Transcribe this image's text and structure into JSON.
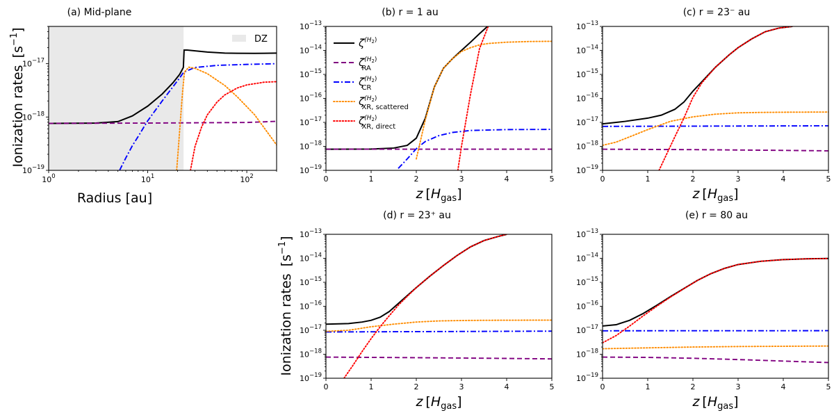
{
  "figure": {
    "ylabel_text": "Ionization rates",
    "ylabel_unit": "[s",
    "ylabel_unit_exp": "−1",
    "ylabel_unit_close": "]",
    "z_label_var": "z",
    "z_label_open": "[",
    "z_label_H": "H",
    "z_label_sub": "gas",
    "z_label_close": "]"
  },
  "colors": {
    "total": "#000000",
    "ra": "#800080",
    "cr": "#0000ff",
    "xr_scattered": "#ff8c00",
    "xr_direct": "#ff0000",
    "dz_fill": "#e9e9e9"
  },
  "legend": {
    "zeta": "ζ",
    "h2_sup": "(H",
    "h2_sub": "2",
    "h2_close": ")",
    "ra_sub": "RA",
    "cr_sub": "CR",
    "xr_scattered_sub": "XR, scattered",
    "xr_direct_sub": "XR, direct",
    "dz_label": "DZ"
  },
  "chart_data": [
    {
      "id": "a",
      "type": "line",
      "title": "(a) Mid-plane",
      "xlabel": "Radius [au]",
      "ylabel": "Ionization rates [s^-1]",
      "xscale": "log",
      "yscale": "log",
      "xlim": [
        1,
        200
      ],
      "ylim": [
        1e-19,
        5e-17
      ],
      "xticks": [
        1,
        10,
        100
      ],
      "xtick_labels": [
        "10^0",
        "10^1",
        "10^2"
      ],
      "yticks": [
        1e-19,
        1e-18,
        1e-17
      ],
      "ytick_labels": [
        "10^-19",
        "10^-18",
        "10^-17"
      ],
      "shaded_region": {
        "label": "DZ",
        "x": [
          1,
          23
        ]
      },
      "series": [
        {
          "name": "total",
          "style": "solid",
          "x": [
            1,
            3,
            5,
            7,
            10,
            14,
            18,
            21,
            22.9,
            23.3,
            25,
            40,
            60,
            80,
            120,
            200
          ],
          "y": [
            7.6e-19,
            7.7e-19,
            8.2e-19,
            1.05e-18,
            1.6e-18,
            2.7e-18,
            4.4e-18,
            6.3e-18,
            8.5e-18,
            1.8e-17,
            1.8e-17,
            1.65e-17,
            1.58e-17,
            1.57e-17,
            1.56e-17,
            1.58e-17
          ]
        },
        {
          "name": "RA",
          "style": "dashed",
          "x": [
            1,
            10,
            100,
            200
          ],
          "y": [
            7.6e-19,
            7.7e-19,
            7.9e-19,
            8.3e-19
          ]
        },
        {
          "name": "CR",
          "style": "dashdot",
          "x": [
            5.2,
            6,
            7,
            8,
            10,
            14,
            18,
            21,
            23,
            30,
            50,
            100,
            200
          ],
          "y": [
            1e-19,
            1.7e-19,
            2.9e-19,
            4.3e-19,
            8.5e-19,
            2e-18,
            3.7e-18,
            5.4e-18,
            6.9e-18,
            8.5e-18,
            9.3e-18,
            9.7e-18,
            1e-17
          ]
        },
        {
          "name": "XR scattered",
          "style": "dotted",
          "x": [
            19.6,
            20.5,
            21.5,
            22.5,
            23.5,
            26,
            30,
            40,
            60,
            80,
            120,
            200
          ],
          "y": [
            1e-19,
            3e-19,
            1e-18,
            3e-18,
            7e-18,
            8.6e-18,
            8.2e-18,
            6.5e-18,
            3.9e-18,
            2.4e-18,
            1.1e-18,
            3e-19
          ]
        },
        {
          "name": "XR direct",
          "style": "dotted",
          "x": [
            27,
            30,
            35,
            40,
            50,
            60,
            80,
            100,
            150,
            200
          ],
          "y": [
            1e-19,
            2.8e-19,
            6.5e-19,
            1.1e-18,
            1.9e-18,
            2.6e-18,
            3.5e-18,
            4e-18,
            4.5e-18,
            4.6e-18
          ]
        }
      ]
    },
    {
      "id": "b",
      "type": "line",
      "title": "(b) r = 1 au",
      "xlabel": "z [H_gas]",
      "xscale": "linear",
      "yscale": "log",
      "xlim": [
        0,
        5
      ],
      "ylim": [
        1e-19,
        1e-13
      ],
      "xticks": [
        0,
        1,
        2,
        3,
        4,
        5
      ],
      "yticks": [
        1e-19,
        1e-18,
        1e-17,
        1e-16,
        1e-15,
        1e-14,
        1e-13
      ],
      "ytick_labels": [
        "10^-19",
        "10^-18",
        "10^-17",
        "10^-16",
        "10^-15",
        "10^-14",
        "10^-13"
      ],
      "legend_position": "upper-left",
      "series": [
        {
          "name": "total",
          "style": "solid",
          "x": [
            0,
            1,
            1.5,
            1.8,
            2.0,
            2.2,
            2.4,
            2.6,
            2.8,
            3.0,
            3.2,
            3.4,
            3.6
          ],
          "y": [
            7.6e-19,
            7.7e-19,
            8.5e-19,
            1.1e-18,
            2.2e-18,
            1.5e-17,
            3e-16,
            1.8e-15,
            4.5e-15,
            1e-14,
            2.2e-14,
            5e-14,
            1.1e-13
          ]
        },
        {
          "name": "RA",
          "style": "dashed",
          "x": [
            0,
            5
          ],
          "y": [
            7.6e-19,
            7.6e-19
          ]
        },
        {
          "name": "CR",
          "style": "dashdot",
          "x": [
            1.6,
            1.8,
            2.0,
            2.2,
            2.5,
            2.8,
            3.2,
            4,
            5
          ],
          "y": [
            1.2e-19,
            3e-19,
            8e-19,
            1.6e-18,
            2.8e-18,
            3.8e-18,
            4.6e-18,
            5e-18,
            5.1e-18
          ]
        },
        {
          "name": "XR scattered",
          "style": "dotted",
          "x": [
            2.0,
            2.2,
            2.4,
            2.6,
            2.8,
            3.0,
            3.2,
            3.4,
            3.6,
            4.0,
            4.5,
            5.0
          ],
          "y": [
            3e-19,
            1.3e-17,
            3e-16,
            1.8e-15,
            4.5e-15,
            9e-15,
            1.3e-14,
            1.7e-14,
            1.95e-14,
            2.2e-14,
            2.35e-14,
            2.4e-14
          ]
        },
        {
          "name": "XR direct",
          "style": "dotted",
          "x": [
            2.92,
            3.0,
            3.2,
            3.4,
            3.6
          ],
          "y": [
            1e-19,
            1e-18,
            1.5e-16,
            1.2e-14,
            1.1e-13
          ]
        }
      ]
    },
    {
      "id": "c",
      "type": "line",
      "title": "(c) r = 23⁻ au",
      "xlabel": "z [H_gas]",
      "xscale": "linear",
      "yscale": "log",
      "xlim": [
        0,
        5
      ],
      "ylim": [
        1e-19,
        1e-13
      ],
      "xticks": [
        0,
        1,
        2,
        3,
        4,
        5
      ],
      "yticks": [
        1e-19,
        1e-18,
        1e-17,
        1e-16,
        1e-15,
        1e-14,
        1e-13
      ],
      "series": [
        {
          "name": "total",
          "style": "solid",
          "x": [
            0,
            0.5,
            1.0,
            1.3,
            1.6,
            1.8,
            2.0,
            2.2,
            2.5,
            2.8,
            3.0,
            3.3,
            3.6,
            3.9,
            4.2
          ],
          "y": [
            8.7e-18,
            1.1e-17,
            1.5e-17,
            2e-17,
            3.5e-17,
            7e-17,
            2e-16,
            5e-16,
            2e-15,
            6.5e-15,
            1.3e-14,
            3e-14,
            6e-14,
            8.5e-14,
            1e-13
          ]
        },
        {
          "name": "RA",
          "style": "dashed",
          "x": [
            0,
            2,
            4,
            5
          ],
          "y": [
            7.6e-19,
            7.3e-19,
            6.8e-19,
            6.5e-19
          ]
        },
        {
          "name": "CR",
          "style": "dashdot",
          "x": [
            0,
            5
          ],
          "y": [
            6.8e-18,
            7.2e-18
          ]
        },
        {
          "name": "XR scattered",
          "style": "dotted",
          "x": [
            0,
            0.3,
            0.6,
            1.0,
            1.5,
            2.0,
            2.5,
            3.0,
            3.5,
            4.0,
            5.0
          ],
          "y": [
            1.1e-18,
            1.5e-18,
            2.5e-18,
            5e-18,
            1.1e-17,
            1.7e-17,
            2.2e-17,
            2.5e-17,
            2.6e-17,
            2.65e-17,
            2.7e-17
          ]
        },
        {
          "name": "XR direct",
          "style": "dotted",
          "x": [
            1.25,
            1.4,
            1.6,
            1.8,
            2.0,
            2.2,
            2.5,
            2.8,
            3.0,
            3.3,
            3.6,
            3.9,
            4.2
          ],
          "y": [
            1e-19,
            4e-19,
            2.5e-18,
            1.5e-17,
            1.1e-16,
            4.5e-16,
            2e-15,
            6.5e-15,
            1.3e-14,
            3e-14,
            6e-14,
            8.5e-14,
            1e-13
          ]
        }
      ]
    },
    {
      "id": "d",
      "type": "line",
      "title": "(d) r = 23⁺ au",
      "xlabel": "z [H_gas]",
      "ylabel": "Ionization rates [s^-1]",
      "xscale": "linear",
      "yscale": "log",
      "xlim": [
        0,
        5
      ],
      "ylim": [
        1e-19,
        1e-13
      ],
      "xticks": [
        0,
        1,
        2,
        3,
        4,
        5
      ],
      "yticks": [
        1e-19,
        1e-18,
        1e-17,
        1e-16,
        1e-15,
        1e-14,
        1e-13
      ],
      "series": [
        {
          "name": "total",
          "style": "solid",
          "x": [
            0,
            0.5,
            0.8,
            1.0,
            1.2,
            1.4,
            1.6,
            1.8,
            2.0,
            2.3,
            2.6,
            2.9,
            3.2,
            3.5,
            3.8,
            4.0
          ],
          "y": [
            1.8e-17,
            1.9e-17,
            2.2e-17,
            2.6e-17,
            3.5e-17,
            6e-17,
            1.3e-16,
            2.8e-16,
            6e-16,
            1.8e-15,
            5e-15,
            1.3e-14,
            3e-14,
            5.5e-14,
            8e-14,
            1e-13
          ]
        },
        {
          "name": "RA",
          "style": "dashed",
          "x": [
            0,
            2,
            4,
            5
          ],
          "y": [
            7.6e-19,
            7.2e-19,
            6.7e-19,
            6.4e-19
          ]
        },
        {
          "name": "CR",
          "style": "dashdot",
          "x": [
            0,
            5
          ],
          "y": [
            8.5e-18,
            9.2e-18
          ]
        },
        {
          "name": "XR scattered",
          "style": "dotted",
          "x": [
            0,
            0.5,
            1.0,
            1.5,
            2.0,
            2.5,
            3.0,
            3.5,
            4.0,
            5.0
          ],
          "y": [
            9e-18,
            1e-17,
            1.4e-17,
            1.8e-17,
            2.2e-17,
            2.45e-17,
            2.55e-17,
            2.6e-17,
            2.62e-17,
            2.65e-17
          ]
        },
        {
          "name": "XR direct",
          "style": "dotted",
          "x": [
            0.4,
            0.6,
            0.8,
            1.0,
            1.2,
            1.4,
            1.6,
            1.8,
            2.0,
            2.3,
            2.6,
            2.9,
            3.2,
            3.5,
            3.8,
            4.0
          ],
          "y": [
            1e-19,
            3.5e-19,
            1.3e-18,
            4.5e-18,
            1.4e-17,
            4e-17,
            1.1e-16,
            2.6e-16,
            6e-16,
            1.8e-15,
            5e-15,
            1.3e-14,
            3e-14,
            5.5e-14,
            8e-14,
            1e-13
          ]
        }
      ]
    },
    {
      "id": "e",
      "type": "line",
      "title": "(e) r = 80 au",
      "xlabel": "z [H_gas]",
      "xscale": "linear",
      "yscale": "log",
      "xlim": [
        0,
        5
      ],
      "ylim": [
        1e-19,
        1e-13
      ],
      "xticks": [
        0,
        1,
        2,
        3,
        4,
        5
      ],
      "yticks": [
        1e-19,
        1e-18,
        1e-17,
        1e-16,
        1e-15,
        1e-14,
        1e-13
      ],
      "series": [
        {
          "name": "total",
          "style": "solid",
          "x": [
            0,
            0.3,
            0.6,
            0.9,
            1.2,
            1.5,
            1.8,
            2.1,
            2.4,
            2.7,
            3.0,
            3.5,
            4.0,
            4.5,
            5.0
          ],
          "y": [
            1.5e-17,
            1.7e-17,
            2.6e-17,
            5e-17,
            1.1e-16,
            2.5e-16,
            5.5e-16,
            1.2e-15,
            2.3e-15,
            3.8e-15,
            5.5e-15,
            7.5e-15,
            8.8e-15,
            9.5e-15,
            9.8e-15
          ]
        },
        {
          "name": "RA",
          "style": "dashed",
          "x": [
            0,
            1,
            2,
            3,
            4,
            5
          ],
          "y": [
            7.6e-19,
            7.4e-19,
            6.8e-19,
            6e-19,
            5.2e-19,
            4.5e-19
          ]
        },
        {
          "name": "CR",
          "style": "dashdot",
          "x": [
            0,
            5
          ],
          "y": [
            9.5e-18,
            9.6e-18
          ]
        },
        {
          "name": "XR scattered",
          "style": "dotted",
          "x": [
            0,
            1,
            2,
            3,
            4,
            5
          ],
          "y": [
            1.7e-18,
            1.85e-18,
            2e-18,
            2.1e-18,
            2.15e-18,
            2.2e-18
          ]
        },
        {
          "name": "XR direct",
          "style": "dotted",
          "x": [
            0,
            0.3,
            0.6,
            0.9,
            1.2,
            1.5,
            1.8,
            2.1,
            2.4,
            2.7,
            3.0,
            3.5,
            4.0,
            4.5,
            5.0
          ],
          "y": [
            3e-18,
            6e-18,
            1.5e-17,
            4e-17,
            1e-16,
            2.4e-16,
            5.4e-16,
            1.2e-15,
            2.3e-15,
            3.8e-15,
            5.5e-15,
            7.5e-15,
            8.8e-15,
            9.5e-15,
            9.8e-15
          ]
        }
      ]
    }
  ]
}
